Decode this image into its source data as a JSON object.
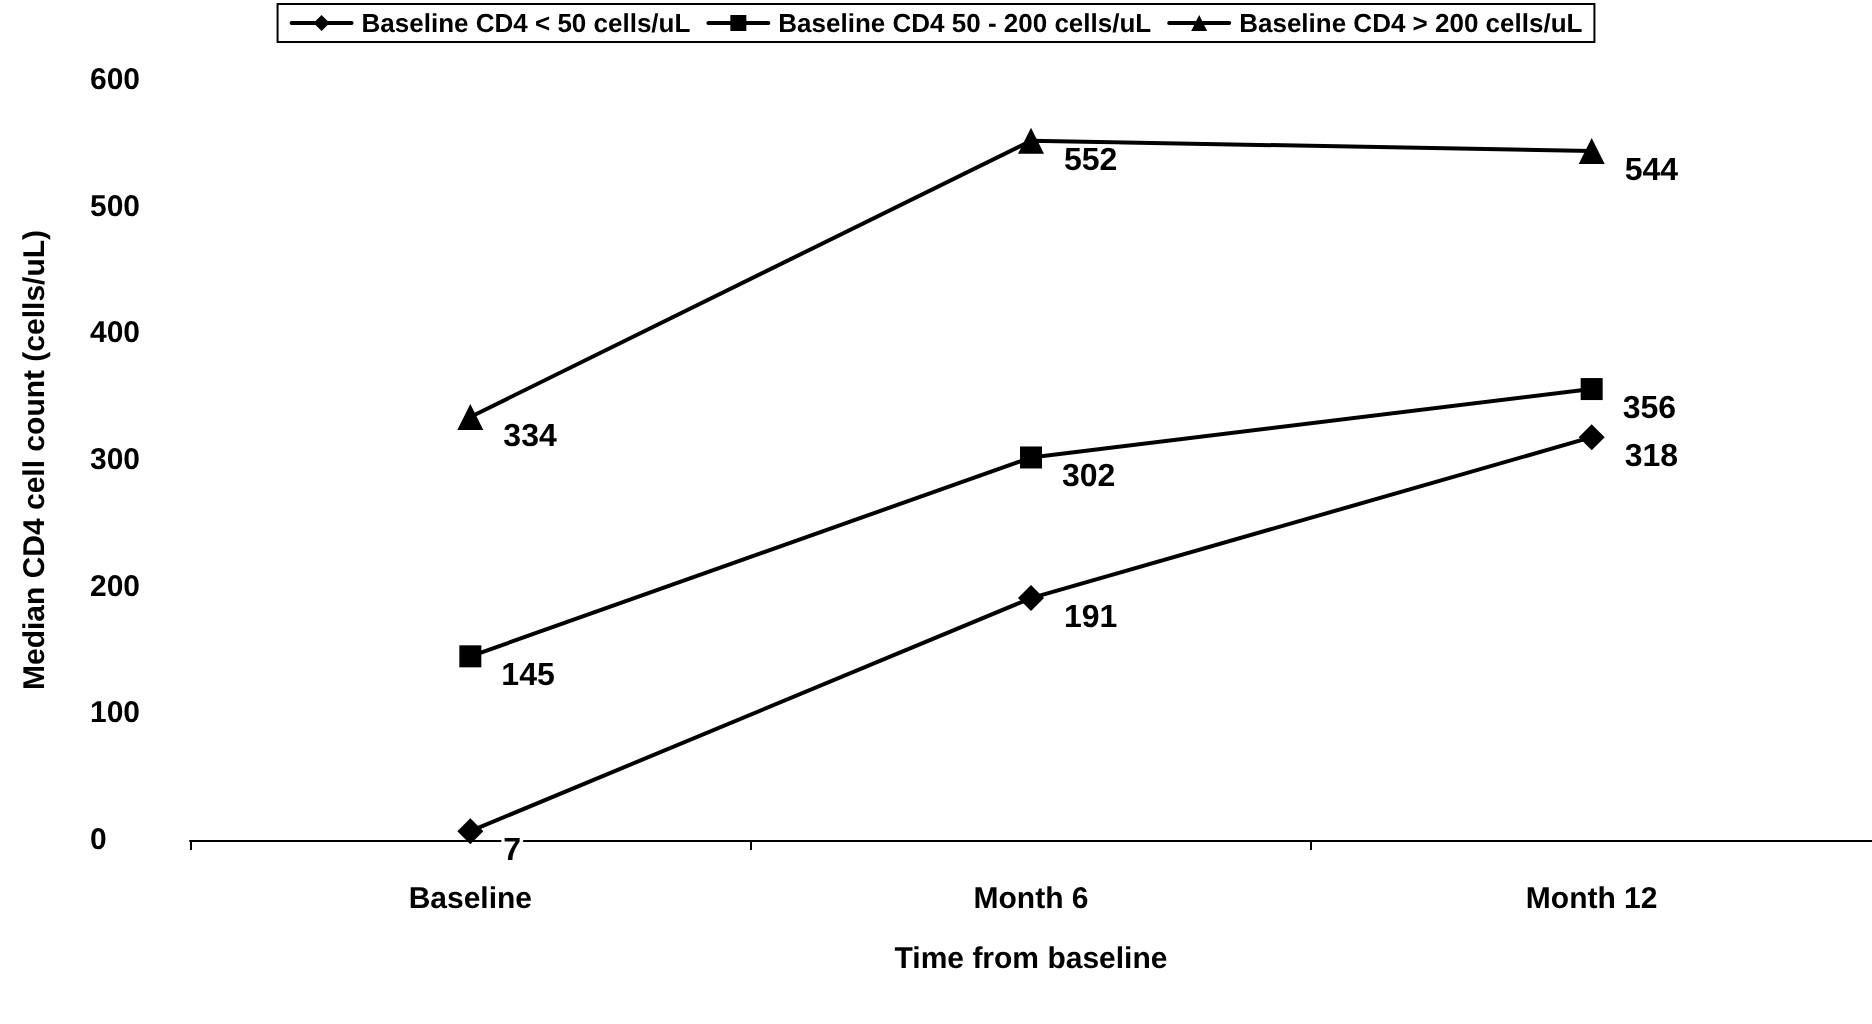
{
  "chart_data": {
    "type": "line",
    "xlabel": "Time from baseline",
    "ylabel": "Median CD4 cell count (cells/uL)",
    "categories": [
      "Baseline",
      "Month 6",
      "Month 12"
    ],
    "series": [
      {
        "name": "Baseline CD4 < 50 cells/uL",
        "color": "#000000",
        "marker": "diamond",
        "values": [
          7,
          191,
          318
        ]
      },
      {
        "name": "Baseline CD4 50 - 200 cells/uL",
        "color": "#000000",
        "marker": "square",
        "values": [
          145,
          302,
          356
        ]
      },
      {
        "name": "Baseline CD4 > 200 cells/uL",
        "color": "#000000",
        "marker": "triangle",
        "values": [
          334,
          552,
          544
        ]
      }
    ],
    "ylim": [
      0,
      600
    ],
    "yticks": [
      0,
      100,
      200,
      300,
      400,
      500,
      600
    ],
    "grid": false,
    "legend": "top",
    "data_labels": true,
    "line_style": "solid"
  }
}
